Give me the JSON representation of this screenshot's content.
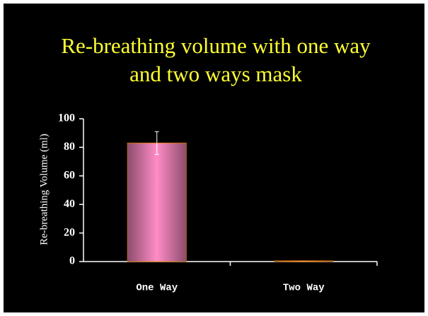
{
  "chart_data": {
    "type": "bar",
    "title": "Re-breathing volume with one way and two ways mask",
    "y_label": "Re-breathing Volume  (ml)",
    "categories": [
      "One Way",
      "Two Way"
    ],
    "values": [
      83,
      0.5
    ],
    "errors": [
      8,
      null
    ],
    "color": "#ff8cc6",
    "edge_color": "#ff8c1a",
    "ylim": [
      0,
      100
    ],
    "yticks": [
      0,
      20,
      40,
      60,
      80,
      100
    ]
  }
}
